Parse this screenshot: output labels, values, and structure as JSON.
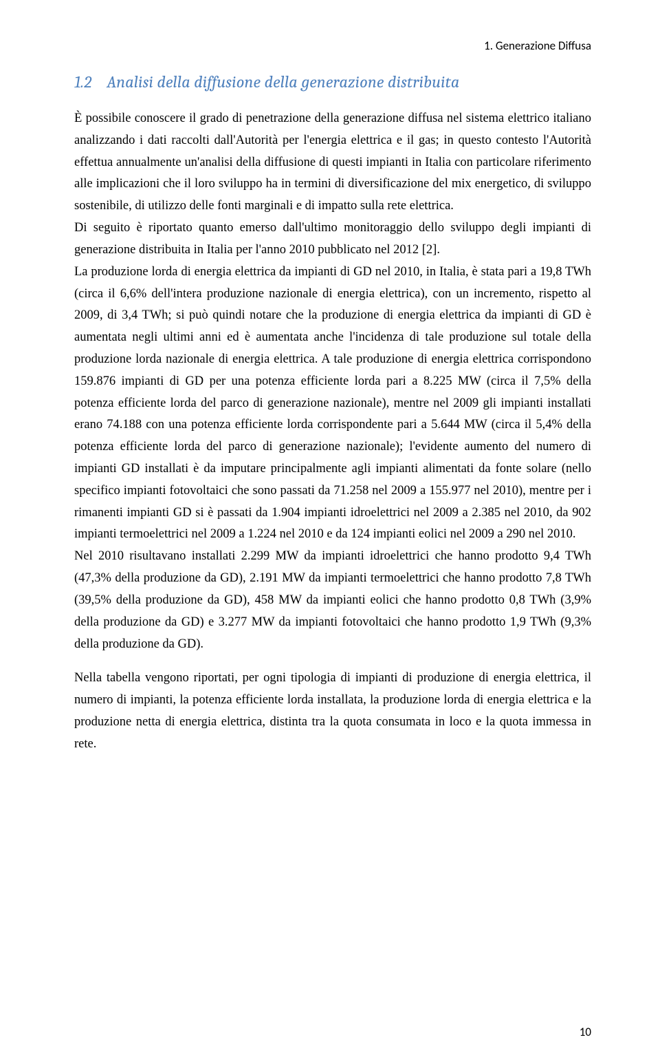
{
  "running_head": "1. Generazione Diffusa",
  "section_number": "1.2",
  "section_title": "Analisi della diffusione della generazione distribuita",
  "paragraphs": {
    "p1": "È possibile conoscere il grado di penetrazione della generazione diffusa nel sistema elettrico italiano analizzando i dati raccolti dall'Autorità per l'energia elettrica e il gas; in questo contesto l'Autorità effettua annualmente un'analisi della diffusione di questi impianti in Italia con particolare riferimento alle implicazioni che il loro sviluppo ha in termini di diversificazione del mix energetico, di sviluppo sostenibile, di utilizzo delle fonti marginali e di impatto sulla rete elettrica.",
    "p2": "Di seguito è riportato quanto emerso dall'ultimo monitoraggio dello sviluppo degli impianti di generazione distribuita in Italia per l'anno 2010 pubblicato nel 2012 [2].",
    "p3": "La produzione lorda di energia elettrica da impianti di GD nel 2010, in Italia, è stata pari a 19,8 TWh (circa il 6,6% dell'intera produzione nazionale di energia elettrica), con un incremento, rispetto al 2009, di 3,4 TWh; si può quindi notare che la produzione di energia elettrica da impianti di GD è aumentata negli ultimi anni ed è aumentata anche l'incidenza di tale produzione sul totale della produzione lorda nazionale di energia elettrica. A tale produzione di energia elettrica corrispondono 159.876 impianti di GD per una potenza efficiente lorda pari a 8.225 MW (circa il 7,5% della potenza efficiente lorda del parco di generazione nazionale), mentre nel 2009 gli impianti installati erano 74.188 con una potenza efficiente lorda corrispondente pari a 5.644 MW (circa il 5,4% della potenza efficiente lorda del parco di generazione nazionale); l'evidente aumento del numero di impianti GD installati è da imputare principalmente agli impianti alimentati da fonte solare (nello specifico impianti fotovoltaici che sono passati da 71.258 nel 2009 a 155.977 nel 2010), mentre per i rimanenti impianti GD si è passati da 1.904 impianti idroelettrici nel 2009 a 2.385 nel 2010, da 902 impianti termoelettrici nel 2009 a 1.224 nel 2010 e da 124 impianti eolici nel 2009 a 290 nel 2010.",
    "p4": "Nel 2010 risultavano installati 2.299 MW da impianti idroelettrici che hanno prodotto 9,4 TWh (47,3% della produzione da GD), 2.191 MW da impianti termoelettrici che hanno prodotto 7,8 TWh (39,5% della produzione da GD), 458 MW da impianti eolici che hanno prodotto 0,8 TWh (3,9% della produzione da GD) e 3.277 MW da impianti fotovoltaici che hanno prodotto 1,9 TWh (9,3% della produzione da GD).",
    "p5": "Nella tabella vengono riportati, per ogni tipologia di impianti di produzione di energia elettrica, il numero di impianti, la potenza efficiente lorda installata, la produzione lorda di energia elettrica e la produzione netta di energia elettrica, distinta tra la quota consumata in loco e la quota immessa in rete."
  },
  "page_number": "10"
}
